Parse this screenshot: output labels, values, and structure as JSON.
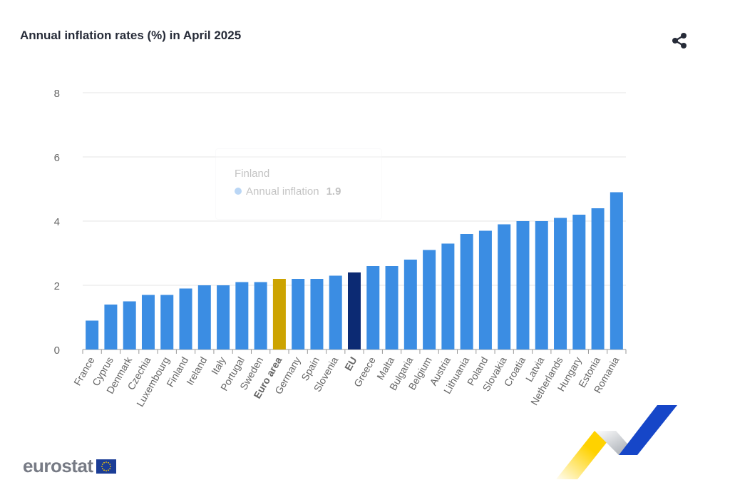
{
  "header": {
    "title": "Annual inflation rates (%) in April 2025",
    "share_icon": "share-icon"
  },
  "tooltip": {
    "title": "Finland",
    "series_label": "Annual inflation",
    "value": "1.9"
  },
  "logo": {
    "text": "eurostat",
    "flag_icon": "eu-flag-icon"
  },
  "colors": {
    "bar": "#3b8de3",
    "euro_area": "#cca300",
    "eu": "#0c2a73",
    "grid": "#e6e6e6",
    "axis_text": "#666666"
  },
  "chart_data": {
    "type": "bar",
    "title": "Annual inflation rates (%) in April 2025",
    "xlabel": "",
    "ylabel": "",
    "ylim": [
      0,
      8
    ],
    "yticks": [
      0,
      2,
      4,
      6,
      8
    ],
    "grid": true,
    "categories": [
      "France",
      "Cyprus",
      "Denmark",
      "Czechia",
      "Luxembourg",
      "Finland",
      "Ireland",
      "Italy",
      "Portugal",
      "Sweden",
      "Euro area",
      "Germany",
      "Spain",
      "Slovenia",
      "EU",
      "Greece",
      "Malta",
      "Bulgaria",
      "Belgium",
      "Austria",
      "Lithuania",
      "Poland",
      "Slovakia",
      "Croatia",
      "Latvia",
      "Netherlands",
      "Hungary",
      "Estonia",
      "Romania"
    ],
    "values": [
      0.9,
      1.4,
      1.5,
      1.7,
      1.7,
      1.9,
      2.0,
      2.0,
      2.1,
      2.1,
      2.2,
      2.2,
      2.2,
      2.3,
      2.4,
      2.6,
      2.6,
      2.8,
      3.1,
      3.3,
      3.6,
      3.7,
      3.9,
      4.0,
      4.0,
      4.1,
      4.2,
      4.4,
      4.9
    ],
    "highlights": {
      "Euro area": "euro_area",
      "EU": "eu"
    },
    "bold_labels": [
      "Euro area",
      "EU"
    ]
  }
}
